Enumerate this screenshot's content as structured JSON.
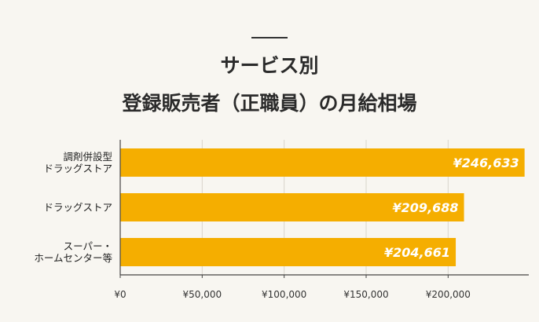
{
  "chart_data": {
    "type": "bar",
    "orientation": "horizontal",
    "title_lines": [
      "サービス別",
      "登録販売者（正職員）の月給相場"
    ],
    "categories": [
      [
        "調剤併設型",
        "ドラッグストア"
      ],
      [
        "ドラッグストア"
      ],
      [
        "スーパー・",
        "ホームセンター等"
      ]
    ],
    "values": [
      246633,
      209688,
      204661
    ],
    "value_labels": [
      "¥246,633",
      "¥209,688",
      "¥204,661"
    ],
    "xlim": [
      0,
      250000
    ],
    "xticks": [
      0,
      50000,
      100000,
      150000,
      200000
    ],
    "xtick_labels": [
      "¥0",
      "¥50,000",
      "¥100,000",
      "¥150,000",
      "¥200,000"
    ],
    "grid": true,
    "bar_color": "#f5ae00",
    "grid_color": "#d9d5cc",
    "axis_color": "#444444"
  }
}
